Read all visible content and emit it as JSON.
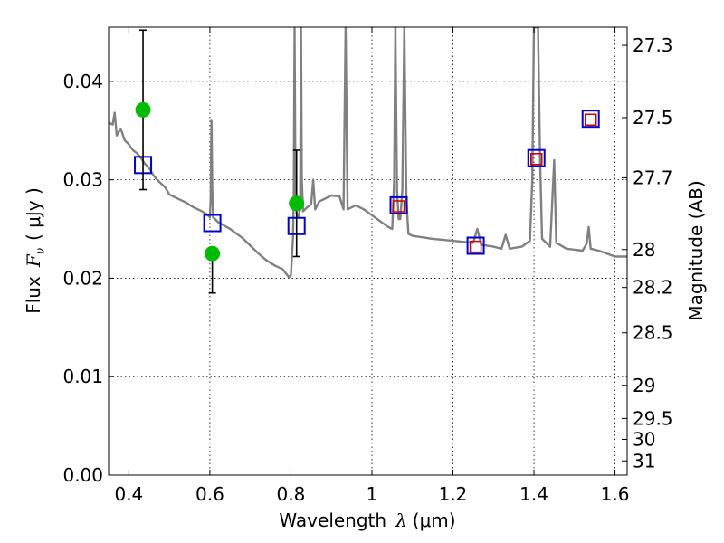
{
  "chart_data": {
    "type": "scatter",
    "xlabel_prefix": "Wavelength",
    "xlabel_symbol": "λ",
    "xlabel_unit": "(μm)",
    "ylabel_prefix": "Flux",
    "ylabel_symbol": "F",
    "ylabel_subscript": "ν",
    "ylabel_unit": "( μJy )",
    "y2label": "Magnitude (AB)",
    "xlim": [
      0.35,
      1.63
    ],
    "ylim": [
      0.0,
      0.0455
    ],
    "xticks": [
      {
        "value": 0.4,
        "label": "0.4"
      },
      {
        "value": 0.6,
        "label": "0.6"
      },
      {
        "value": 0.8,
        "label": "0.8"
      },
      {
        "value": 1.0,
        "label": "1"
      },
      {
        "value": 1.2,
        "label": "1.2"
      },
      {
        "value": 1.4,
        "label": "1.4"
      },
      {
        "value": 1.6,
        "label": "1.6"
      }
    ],
    "yticks": [
      {
        "value": 0.0,
        "label": "0.00"
      },
      {
        "value": 0.01,
        "label": "0.01"
      },
      {
        "value": 0.02,
        "label": "0.02"
      },
      {
        "value": 0.03,
        "label": "0.03"
      },
      {
        "value": 0.04,
        "label": "0.04"
      }
    ],
    "y2ticks": [
      {
        "value": 27.3,
        "label": "27.3"
      },
      {
        "value": 27.5,
        "label": "27.5"
      },
      {
        "value": 27.7,
        "label": "27.7"
      },
      {
        "value": 28.0,
        "label": "28"
      },
      {
        "value": 28.2,
        "label": "28.2"
      },
      {
        "value": 28.5,
        "label": "28.5"
      },
      {
        "value": 29.0,
        "label": "29"
      },
      {
        "value": 29.5,
        "label": "29.5"
      },
      {
        "value": 30.0,
        "label": "30"
      },
      {
        "value": 31.0,
        "label": "31"
      }
    ],
    "colors": {
      "model": "#808080",
      "observed": "#00bb00",
      "synthetic_blue": "#0000cc",
      "synthetic_red": "#cc0000",
      "errorbar": "#000000"
    },
    "series": [
      {
        "name": "observed",
        "marker": "circle",
        "points": [
          {
            "x": 0.435,
            "y": 0.0371,
            "yerr_low": 0.029,
            "yerr_high": 0.0452
          },
          {
            "x": 0.606,
            "y": 0.0225,
            "yerr_low": 0.0185,
            "yerr_high": 0.0225
          },
          {
            "x": 0.814,
            "y": 0.0276,
            "yerr_low": 0.0222,
            "yerr_high": 0.033
          }
        ]
      },
      {
        "name": "model_synthetic_blue",
        "marker": "square",
        "points": [
          {
            "x": 0.435,
            "y": 0.0315
          },
          {
            "x": 0.606,
            "y": 0.0256
          },
          {
            "x": 0.814,
            "y": 0.0253
          },
          {
            "x": 1.066,
            "y": 0.0274
          },
          {
            "x": 1.256,
            "y": 0.0233
          },
          {
            "x": 1.406,
            "y": 0.0322
          },
          {
            "x": 1.54,
            "y": 0.0362
          }
        ]
      },
      {
        "name": "model_synthetic_red",
        "marker": "square",
        "points": [
          {
            "x": 1.066,
            "y": 0.0273
          },
          {
            "x": 1.256,
            "y": 0.0232
          },
          {
            "x": 1.406,
            "y": 0.0321
          },
          {
            "x": 1.54,
            "y": 0.0361
          }
        ]
      },
      {
        "name": "model_spectrum",
        "type": "line",
        "points": [
          [
            0.35,
            0.0358
          ],
          [
            0.36,
            0.0356
          ],
          [
            0.365,
            0.0368
          ],
          [
            0.37,
            0.0345
          ],
          [
            0.38,
            0.0352
          ],
          [
            0.39,
            0.034
          ],
          [
            0.4,
            0.0336
          ],
          [
            0.41,
            0.033
          ],
          [
            0.42,
            0.0327
          ],
          [
            0.43,
            0.0322
          ],
          [
            0.44,
            0.0316
          ],
          [
            0.45,
            0.0312
          ],
          [
            0.46,
            0.0305
          ],
          [
            0.47,
            0.03
          ],
          [
            0.48,
            0.0296
          ],
          [
            0.49,
            0.0292
          ],
          [
            0.5,
            0.0285
          ],
          [
            0.52,
            0.0281
          ],
          [
            0.54,
            0.0277
          ],
          [
            0.56,
            0.0272
          ],
          [
            0.58,
            0.0268
          ],
          [
            0.595,
            0.0264
          ],
          [
            0.6,
            0.0262
          ],
          [
            0.602,
            0.028
          ],
          [
            0.604,
            0.036
          ],
          [
            0.606,
            0.029
          ],
          [
            0.608,
            0.0262
          ],
          [
            0.62,
            0.0257
          ],
          [
            0.65,
            0.025
          ],
          [
            0.68,
            0.0241
          ],
          [
            0.7,
            0.0233
          ],
          [
            0.72,
            0.0225
          ],
          [
            0.74,
            0.0218
          ],
          [
            0.76,
            0.0213
          ],
          [
            0.78,
            0.0209
          ],
          [
            0.795,
            0.0201
          ],
          [
            0.8,
            0.0203
          ],
          [
            0.805,
            0.024
          ],
          [
            0.807,
            0.028
          ],
          [
            0.809,
            0.0455
          ],
          [
            0.811,
            0.03
          ],
          [
            0.814,
            0.0266
          ],
          [
            0.818,
            0.0262
          ],
          [
            0.823,
            0.027
          ],
          [
            0.825,
            0.0455
          ],
          [
            0.827,
            0.03
          ],
          [
            0.83,
            0.0268
          ],
          [
            0.84,
            0.0272
          ],
          [
            0.85,
            0.0275
          ],
          [
            0.855,
            0.03
          ],
          [
            0.86,
            0.027
          ],
          [
            0.87,
            0.0278
          ],
          [
            0.88,
            0.028
          ],
          [
            0.89,
            0.0282
          ],
          [
            0.9,
            0.0284
          ],
          [
            0.92,
            0.0283
          ],
          [
            0.93,
            0.027
          ],
          [
            0.935,
            0.0455
          ],
          [
            0.94,
            0.027
          ],
          [
            0.96,
            0.0274
          ],
          [
            0.98,
            0.027
          ],
          [
            1.0,
            0.0264
          ],
          [
            1.02,
            0.0258
          ],
          [
            1.04,
            0.0252
          ],
          [
            1.05,
            0.025
          ],
          [
            1.055,
            0.03
          ],
          [
            1.058,
            0.0455
          ],
          [
            1.062,
            0.029
          ],
          [
            1.066,
            0.026
          ],
          [
            1.07,
            0.026
          ],
          [
            1.075,
            0.029
          ],
          [
            1.08,
            0.0455
          ],
          [
            1.085,
            0.028
          ],
          [
            1.09,
            0.0245
          ],
          [
            1.1,
            0.0243
          ],
          [
            1.15,
            0.024
          ],
          [
            1.2,
            0.0238
          ],
          [
            1.25,
            0.0236
          ],
          [
            1.26,
            0.025
          ],
          [
            1.27,
            0.0234
          ],
          [
            1.3,
            0.0232
          ],
          [
            1.32,
            0.023
          ],
          [
            1.33,
            0.0244
          ],
          [
            1.34,
            0.023
          ],
          [
            1.37,
            0.0232
          ],
          [
            1.39,
            0.0238
          ],
          [
            1.396,
            0.03
          ],
          [
            1.4,
            0.0455
          ],
          [
            1.41,
            0.0455
          ],
          [
            1.415,
            0.032
          ],
          [
            1.42,
            0.024
          ],
          [
            1.44,
            0.0232
          ],
          [
            1.45,
            0.032
          ],
          [
            1.455,
            0.0236
          ],
          [
            1.48,
            0.023
          ],
          [
            1.52,
            0.0228
          ],
          [
            1.53,
            0.0235
          ],
          [
            1.535,
            0.0252
          ],
          [
            1.54,
            0.023
          ],
          [
            1.56,
            0.0228
          ],
          [
            1.58,
            0.0225
          ],
          [
            1.6,
            0.0222
          ],
          [
            1.63,
            0.0222
          ]
        ]
      }
    ]
  }
}
